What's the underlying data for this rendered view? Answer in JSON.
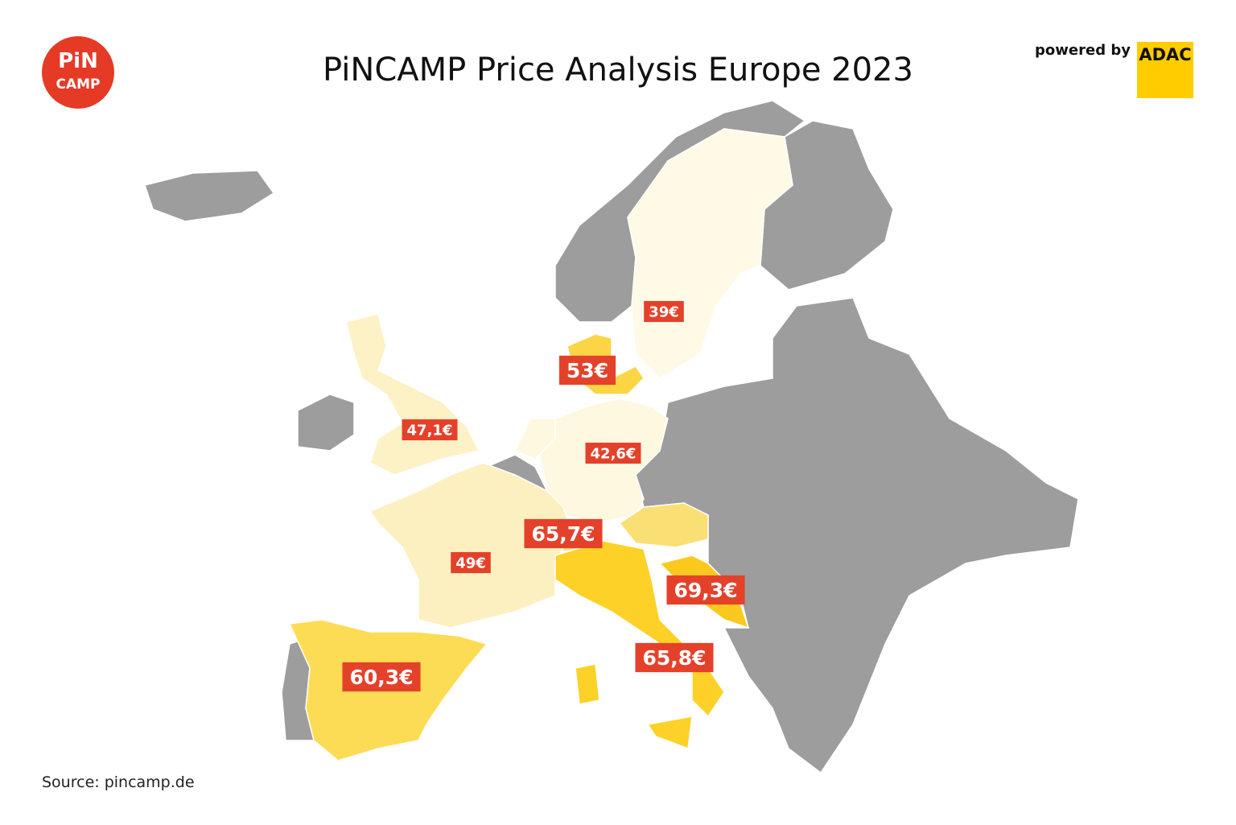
{
  "header": {
    "title": "PiNCAMP Price Analysis Europe 2023",
    "logo_top": "PiN",
    "logo_bottom": "CAMP",
    "powered_by": "powered by",
    "brand": "ADAC"
  },
  "map": {
    "regions": [
      {
        "label": "39€",
        "color": "#fefae6"
      },
      {
        "label": "53€",
        "color": "#fbd544"
      },
      {
        "label": "47,1€",
        "color": "#fdf1c6"
      },
      {
        "label": "42,6€",
        "color": "#fef8e0"
      },
      {
        "label": "65,7€",
        "color": "#fadf74"
      },
      {
        "label": "49€",
        "color": "#fdf0c0"
      },
      {
        "label": "69,3€",
        "color": "#fbc91e"
      },
      {
        "label": "65,8€",
        "color": "#fed128"
      },
      {
        "label": "60,3€",
        "color": "#fddc55"
      }
    ]
  },
  "footer": {
    "source": "Source: pincamp.de"
  }
}
